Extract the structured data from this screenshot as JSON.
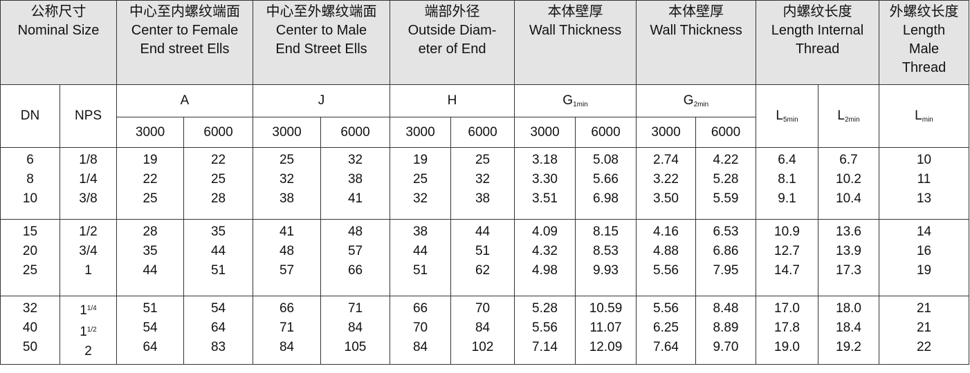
{
  "header": {
    "columns": [
      {
        "zh": "公称尺寸",
        "en": [
          "Nominal Size"
        ]
      },
      {
        "zh": "中心至内螺纹端面",
        "en": [
          "Center to Female",
          "End street Ells"
        ]
      },
      {
        "zh": "中心至外螺纹端面",
        "en": [
          "Center to Male",
          "End Street Ells"
        ]
      },
      {
        "zh": "端部外径",
        "en": [
          "Outside Diam-",
          "eter of End"
        ]
      },
      {
        "zh": "本体壁厚",
        "en": [
          "Wall Thickness"
        ]
      },
      {
        "zh": "本体壁厚",
        "en": [
          "Wall Thickness"
        ]
      },
      {
        "zh": "内螺纹长度",
        "en": [
          "Length Internal",
          "Thread"
        ]
      },
      {
        "zh": "外螺纹长度",
        "en": [
          "Length",
          "Male",
          "Thread"
        ]
      }
    ]
  },
  "sub_header": {
    "dn": "DN",
    "nps": "NPS",
    "groups": [
      {
        "label": "A",
        "classes": [
          "3000",
          "6000"
        ]
      },
      {
        "label": "J",
        "classes": [
          "3000",
          "6000"
        ]
      },
      {
        "label": "H",
        "classes": [
          "3000",
          "6000"
        ]
      },
      {
        "label": {
          "base": "G",
          "sub": "1min"
        },
        "classes": [
          "3000",
          "6000"
        ]
      },
      {
        "label": {
          "base": "G",
          "sub": "2min"
        },
        "classes": [
          "3000",
          "6000"
        ]
      }
    ],
    "l5": {
      "base": "L",
      "sub": "5min"
    },
    "l2": {
      "base": "L",
      "sub": "2min"
    },
    "lmin": {
      "base": "L",
      "sub": "min"
    }
  },
  "row_groups": [
    [
      [
        "6",
        "1/8",
        "19",
        "22",
        "25",
        "32",
        "19",
        "25",
        "3.18",
        "5.08",
        "2.74",
        "4.22",
        "6.4",
        "6.7",
        "10"
      ],
      [
        "8",
        "1/4",
        "22",
        "25",
        "32",
        "38",
        "25",
        "32",
        "3.30",
        "5.66",
        "3.22",
        "5.28",
        "8.1",
        "10.2",
        "11"
      ],
      [
        "10",
        "3/8",
        "25",
        "28",
        "38",
        "41",
        "32",
        "38",
        "3.51",
        "6.98",
        "3.50",
        "5.59",
        "9.1",
        "10.4",
        "13"
      ]
    ],
    [
      [
        "15",
        "1/2",
        "28",
        "35",
        "41",
        "48",
        "38",
        "44",
        "4.09",
        "8.15",
        "4.16",
        "6.53",
        "10.9",
        "13.6",
        "14"
      ],
      [
        "20",
        "3/4",
        "35",
        "44",
        "48",
        "57",
        "44",
        "51",
        "4.32",
        "8.53",
        "4.88",
        "6.86",
        "12.7",
        "13.9",
        "16"
      ],
      [
        "25",
        "1",
        "44",
        "51",
        "57",
        "66",
        "51",
        "62",
        "4.98",
        "9.93",
        "5.56",
        "7.95",
        "14.7",
        "17.3",
        "19"
      ]
    ],
    [
      [
        "32",
        {
          "base": "1",
          "sup": "1/4"
        },
        "51",
        "54",
        "66",
        "71",
        "66",
        "70",
        "5.28",
        "10.59",
        "5.56",
        "8.48",
        "17.0",
        "18.0",
        "21"
      ],
      [
        "40",
        {
          "base": "1",
          "sup": "1/2"
        },
        "54",
        "64",
        "71",
        "84",
        "70",
        "84",
        "5.56",
        "11.07",
        "6.25",
        "8.89",
        "17.8",
        "18.4",
        "21"
      ],
      [
        "50",
        "2",
        "64",
        "83",
        "84",
        "105",
        "84",
        "102",
        "7.14",
        "12.09",
        "7.64",
        "9.70",
        "19.0",
        "19.2",
        "22"
      ]
    ]
  ]
}
